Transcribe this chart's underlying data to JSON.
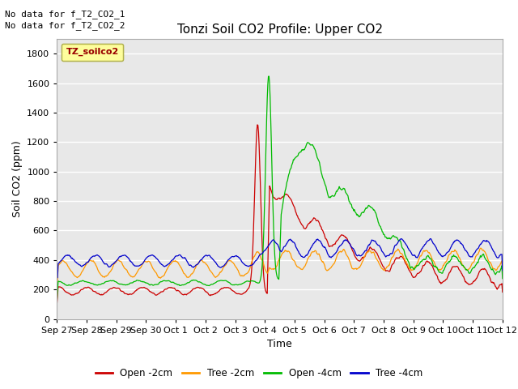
{
  "title": "Tonzi Soil CO2 Profile: Upper CO2",
  "ylabel": "Soil CO2 (ppm)",
  "xlabel": "Time",
  "ylim": [
    0,
    1900
  ],
  "yticks": [
    0,
    200,
    400,
    600,
    800,
    1000,
    1200,
    1400,
    1600,
    1800
  ],
  "annotations": [
    "No data for f_T2_CO2_1",
    "No data for f_T2_CO2_2"
  ],
  "legend_label": "TZ_soilco2",
  "xtick_labels": [
    "Sep 27",
    "Sep 28",
    "Sep 29",
    "Sep 30",
    "Oct 1",
    "Oct 2",
    "Oct 3",
    "Oct 4",
    "Oct 5",
    "Oct 6",
    "Oct 7",
    "Oct 8",
    "Oct 9",
    "Oct 10",
    "Oct 11",
    "Oct 12"
  ],
  "series_labels": [
    "Open -2cm",
    "Tree -2cm",
    "Open -4cm",
    "Tree -4cm"
  ],
  "series_colors": [
    "#cc0000",
    "#ff9900",
    "#00bb00",
    "#0000cc"
  ],
  "plot_bg_color": "#e8e8e8",
  "fig_bg_color": "#ffffff",
  "grid_color": "#ffffff",
  "title_fontsize": 11,
  "axis_fontsize": 9,
  "tick_fontsize": 8,
  "annot_fontsize": 8
}
